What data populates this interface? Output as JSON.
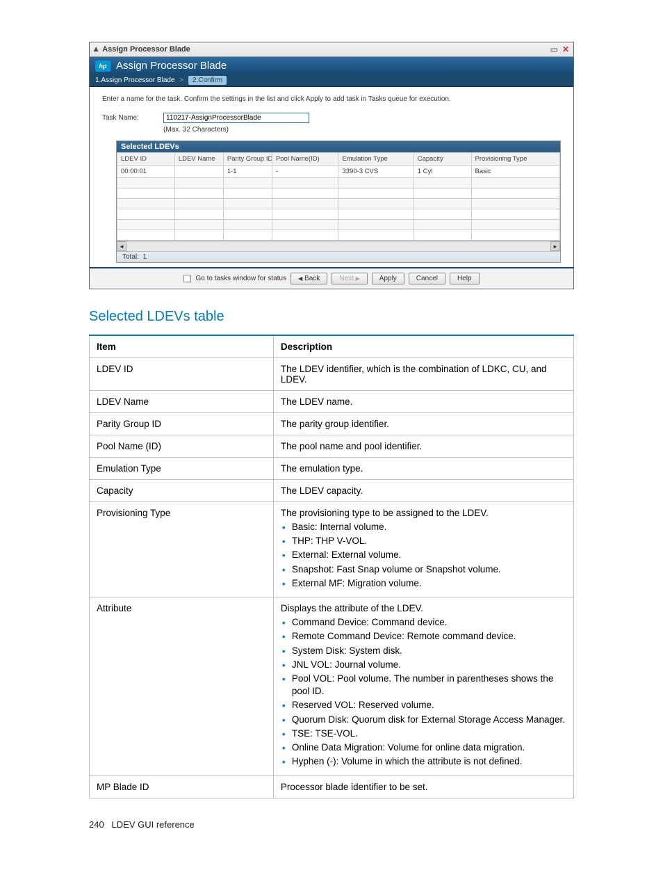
{
  "dialog": {
    "titlebar": "Assign Processor Blade",
    "header": "Assign Processor Blade",
    "steps": {
      "s1": "1.Assign Processor Blade",
      "s2": "2.Confirm"
    },
    "instruction": "Enter a name for the task. Confirm the settings in the list and click Apply to add task in Tasks queue for execution.",
    "task_label": "Task Name:",
    "task_value": "110217-AssignProcessorBlade",
    "task_hint": "(Max. 32 Characters)",
    "selected": {
      "title": "Selected LDEVs",
      "headers": [
        "LDEV ID",
        "LDEV Name",
        "Parity Group ID",
        "Pool Name(ID)",
        "Emulation Type",
        "Capacity",
        "Provisioning Type"
      ],
      "row": [
        "00:00:01",
        "",
        "1-1",
        "-",
        "3390-3 CVS",
        "1 Cyl",
        "Basic"
      ],
      "total_label": "Total:",
      "total_value": "1"
    },
    "buttons": {
      "status": "Go to tasks window for status",
      "back": "Back",
      "next": "Next",
      "apply": "Apply",
      "cancel": "Cancel",
      "help": "Help"
    }
  },
  "section_title": "Selected LDEVs table",
  "doc": {
    "head_item": "Item",
    "head_desc": "Description",
    "rows": [
      {
        "item": "LDEV ID",
        "desc": "The LDEV identifier, which is the combination of LDKC, CU, and LDEV."
      },
      {
        "item": "LDEV Name",
        "desc": "The LDEV name."
      },
      {
        "item": "Parity Group ID",
        "desc": "The parity group identifier."
      },
      {
        "item": "Pool Name (ID)",
        "desc": "The pool name and pool identifier."
      },
      {
        "item": "Emulation Type",
        "desc": "The emulation type."
      },
      {
        "item": "Capacity",
        "desc": "The LDEV capacity."
      },
      {
        "item": "Provisioning Type",
        "desc": "The provisioning type to be assigned to the LDEV.",
        "list": [
          "Basic: Internal volume.",
          "THP: THP V-VOL.",
          "External: External volume.",
          "Snapshot: Fast Snap volume or Snapshot volume.",
          "External MF: Migration volume."
        ]
      },
      {
        "item": "Attribute",
        "desc": "Displays the attribute of the LDEV.",
        "list": [
          "Command Device: Command device.",
          "Remote Command Device: Remote command device.",
          "System Disk: System disk.",
          "JNL VOL: Journal volume.",
          "Pool VOL: Pool volume. The number in parentheses shows the pool ID.",
          "Reserved VOL: Reserved volume.",
          "Quorum Disk: Quorum disk for External Storage Access Manager.",
          "TSE: TSE-VOL.",
          "Online Data Migration: Volume for online data migration.",
          "Hyphen (-): Volume in which the attribute is not defined."
        ]
      },
      {
        "item": "MP Blade ID",
        "desc": "Processor blade identifier to be set."
      }
    ]
  },
  "footer": {
    "page": "240",
    "label": "LDEV GUI reference"
  }
}
